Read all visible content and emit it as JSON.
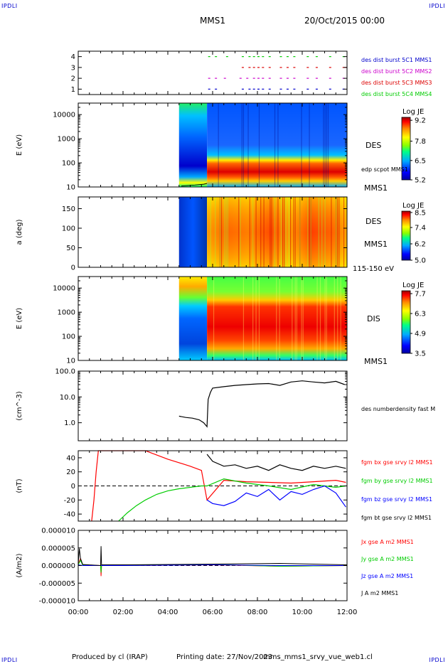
{
  "header": {
    "corner_label": "IPDLI",
    "mission": "MMS1",
    "date": "20/Oct/2015 00:00"
  },
  "footer": {
    "produced_by": "Produced by cl (IRAP)",
    "printing_date": "Printing date: 27/Nov/2023",
    "filename": "mms_mms1_srvy_vue_web1.cl"
  },
  "colors": {
    "mms1": "#0000cc",
    "mms2": "#cc00cc",
    "mms3": "#dd0000",
    "mms4": "#00cc00",
    "bx": "#ff0000",
    "by": "#00cc00",
    "bz": "#0000ff",
    "bt": "#000000"
  },
  "chart_data": [
    {
      "type": "scatter",
      "title": "burst availability",
      "yticks": [
        "1",
        "2",
        "3",
        "4"
      ],
      "ylim": [
        0.5,
        4.5
      ],
      "xlim": [
        0,
        12
      ],
      "series": [
        {
          "name": "des dist burst 5C1 MMS1",
          "y": 1,
          "x": [
            5.8,
            6.1,
            7.3,
            7.6,
            7.8,
            8.0,
            8.2,
            8.5,
            9.0,
            9.3,
            9.6,
            10.2,
            10.6,
            11.2,
            11.8
          ]
        },
        {
          "name": "des dist burst 5C2 MMS2",
          "y": 2,
          "x": [
            5.8,
            6.1,
            6.5,
            7.2,
            7.5,
            7.8,
            8.0,
            8.2,
            8.5,
            9.0,
            9.3,
            9.6,
            10.2,
            10.6,
            11.2,
            11.8
          ]
        },
        {
          "name": "des dist burst 5C3 MMS3",
          "y": 3,
          "x": [
            7.3,
            7.6,
            7.8,
            8.0,
            8.2,
            8.5,
            9.0,
            9.3,
            9.6,
            10.2,
            10.6,
            11.2,
            11.8,
            11.9
          ]
        },
        {
          "name": "des dist burst 5C4 MMS4",
          "y": 4,
          "x": [
            5.8,
            6.1,
            6.6,
            7.3,
            7.6,
            7.8,
            8.0,
            8.2,
            8.5,
            9.0,
            9.3,
            9.6,
            10.2,
            10.6,
            11.2,
            11.8
          ]
        }
      ]
    },
    {
      "type": "heatmap",
      "ylabel": "E (eV)",
      "label": "DES",
      "sublabel": "edp scpot MMS1",
      "spacecraft": "MMS1",
      "yscale": "log",
      "ylim": [
        10,
        30000
      ],
      "yticks": [
        "10",
        "100",
        "1000",
        "10000"
      ],
      "xlim": [
        0,
        12
      ],
      "data_start": 4.5,
      "colorbar": {
        "title": "Log JE",
        "min": 5.2,
        "max": 9.4,
        "ticks": [
          "9.2",
          "7.8",
          "6.5",
          "5.2"
        ]
      }
    },
    {
      "type": "heatmap",
      "ylabel": "a (deg)",
      "label": "DES",
      "spacecraft": "MMS1",
      "energy_range": "115-150 eV",
      "ylim": [
        0,
        180
      ],
      "yticks": [
        "0",
        "50",
        "100",
        "150"
      ],
      "xlim": [
        0,
        12
      ],
      "data_start": 4.5,
      "colorbar": {
        "title": "Log JE",
        "min": 5.0,
        "max": 8.6,
        "ticks": [
          "8.5",
          "7.4",
          "6.2",
          "5.0"
        ]
      }
    },
    {
      "type": "heatmap",
      "ylabel": "E (eV)",
      "label": "DIS",
      "spacecraft": "MMS1",
      "yscale": "log",
      "ylim": [
        10,
        30000
      ],
      "yticks": [
        "10",
        "100",
        "1000",
        "10000"
      ],
      "xlim": [
        0,
        12
      ],
      "data_start": 4.5,
      "colorbar": {
        "title": "Log JE",
        "min": 3.5,
        "max": 7.9,
        "ticks": [
          "7.7",
          "6.3",
          "4.9",
          "3.5"
        ]
      }
    },
    {
      "type": "line",
      "ylabel": "(cm^-3)",
      "yscale": "log",
      "ylim": [
        0.2,
        100
      ],
      "yticks": [
        "1.0",
        "10.0",
        "100.0"
      ],
      "xlim": [
        0,
        12
      ],
      "series": [
        {
          "name": "des numberdensity fast M",
          "x": [
            4.5,
            4.8,
            5.1,
            5.4,
            5.6,
            5.75,
            5.8,
            5.9,
            6.0,
            6.5,
            7.0,
            7.5,
            8.0,
            8.5,
            9.0,
            9.5,
            10.0,
            10.5,
            11.0,
            11.5,
            11.9
          ],
          "y": [
            1.8,
            1.6,
            1.5,
            1.3,
            1.0,
            0.7,
            8.0,
            15.0,
            22.0,
            25.0,
            28.0,
            30.0,
            32.0,
            33.0,
            28.0,
            38.0,
            42.0,
            38.0,
            35.0,
            40.0,
            30.0
          ]
        }
      ]
    },
    {
      "type": "line",
      "ylabel": "(nT)",
      "ylim": [
        -50,
        50
      ],
      "yticks": [
        "-40",
        "-20",
        "0",
        "20",
        "40"
      ],
      "xlim": [
        0,
        12
      ],
      "series": [
        {
          "name": "fgm bx gse srvy l2 MMS1",
          "x": [
            0.6,
            0.7,
            0.8,
            0.9,
            3.0,
            4.0,
            5.0,
            5.5,
            5.75,
            6.5,
            7.5,
            8.5,
            9.5,
            10.5,
            11.5,
            11.95
          ],
          "y": [
            -50,
            -20,
            20,
            50,
            50,
            38,
            28,
            22,
            -20,
            8,
            6,
            5,
            4,
            6,
            8,
            5
          ]
        },
        {
          "name": "fgm by gse srvy l2 MMS1",
          "x": [
            1.8,
            2.2,
            2.6,
            3.0,
            3.5,
            4.0,
            4.5,
            5.0,
            5.5,
            5.75,
            6.5,
            7.5,
            8.5,
            9.5,
            10.5,
            11.5,
            11.95
          ],
          "y": [
            -50,
            -38,
            -28,
            -20,
            -12,
            -7,
            -4,
            -2,
            0,
            0,
            10,
            4,
            0,
            -5,
            2,
            -2,
            0
          ]
        },
        {
          "name": "fgm bz gse srvy l2 MMS1",
          "x": [
            5.75,
            6.0,
            6.5,
            7.0,
            7.5,
            8.0,
            8.5,
            9.0,
            9.5,
            10.0,
            10.5,
            11.0,
            11.5,
            11.95
          ],
          "y": [
            -20,
            -25,
            -28,
            -22,
            -10,
            -15,
            -5,
            -20,
            -8,
            -12,
            -5,
            0,
            -10,
            -30
          ]
        },
        {
          "name": "fgm bt gse srvy l2 MMS1",
          "x": [
            5.75,
            6.0,
            6.5,
            7.0,
            7.5,
            8.0,
            8.5,
            9.0,
            9.5,
            10.0,
            10.5,
            11.0,
            11.5,
            11.95
          ],
          "y": [
            45,
            35,
            28,
            30,
            25,
            28,
            22,
            30,
            25,
            22,
            28,
            25,
            28,
            25
          ]
        }
      ]
    },
    {
      "type": "line",
      "ylabel": "(A/m2)",
      "ylim": [
        -1e-05,
        1e-05
      ],
      "yticks": [
        "0.000010",
        "0.000005",
        "0.000000",
        "-0.000005",
        "-0.000010"
      ],
      "xlim": [
        0,
        12
      ],
      "xticks": [
        "00:00",
        "02:00",
        "04:00",
        "06:00",
        "08:00",
        "10:00",
        "12:00"
      ],
      "series": [
        {
          "name": "Jx gse A m2 MMS1",
          "x": [
            0,
            0.1,
            0.2,
            1.0,
            1.02,
            1.04,
            2.0,
            6.0,
            9.0,
            12.0
          ],
          "y": [
            4e-07,
            2e-06,
            2e-07,
            0,
            -3e-06,
            0,
            0,
            2e-07,
            -2e-07,
            0
          ]
        },
        {
          "name": "Jy gse A m2 MMS1",
          "x": [
            0,
            0.1,
            0.2,
            1.0,
            1.02,
            1.04,
            2.0,
            6.0,
            9.0,
            12.0
          ],
          "y": [
            2e-07,
            1.5e-06,
            1e-07,
            0,
            -2e-06,
            0,
            0,
            3e-07,
            -2e-07,
            0
          ]
        },
        {
          "name": "Jz gse A m2 MMS1",
          "x": [
            0,
            0.2,
            2.0,
            6.0,
            9.0,
            12.0
          ],
          "y": [
            2e-07,
            0,
            0,
            2e-07,
            0,
            0
          ]
        },
        {
          "name": "J A m2 MMS1",
          "x": [
            0,
            0.05,
            0.1,
            0.2,
            1.0,
            1.02,
            1.04,
            2.0,
            6.0,
            9.0,
            12.0
          ],
          "y": [
            5e-07,
            4.8e-06,
            2e-06,
            3e-07,
            0,
            5.5e-06,
            2e-07,
            2e-07,
            4e-07,
            6e-07,
            2e-07
          ]
        }
      ]
    }
  ]
}
